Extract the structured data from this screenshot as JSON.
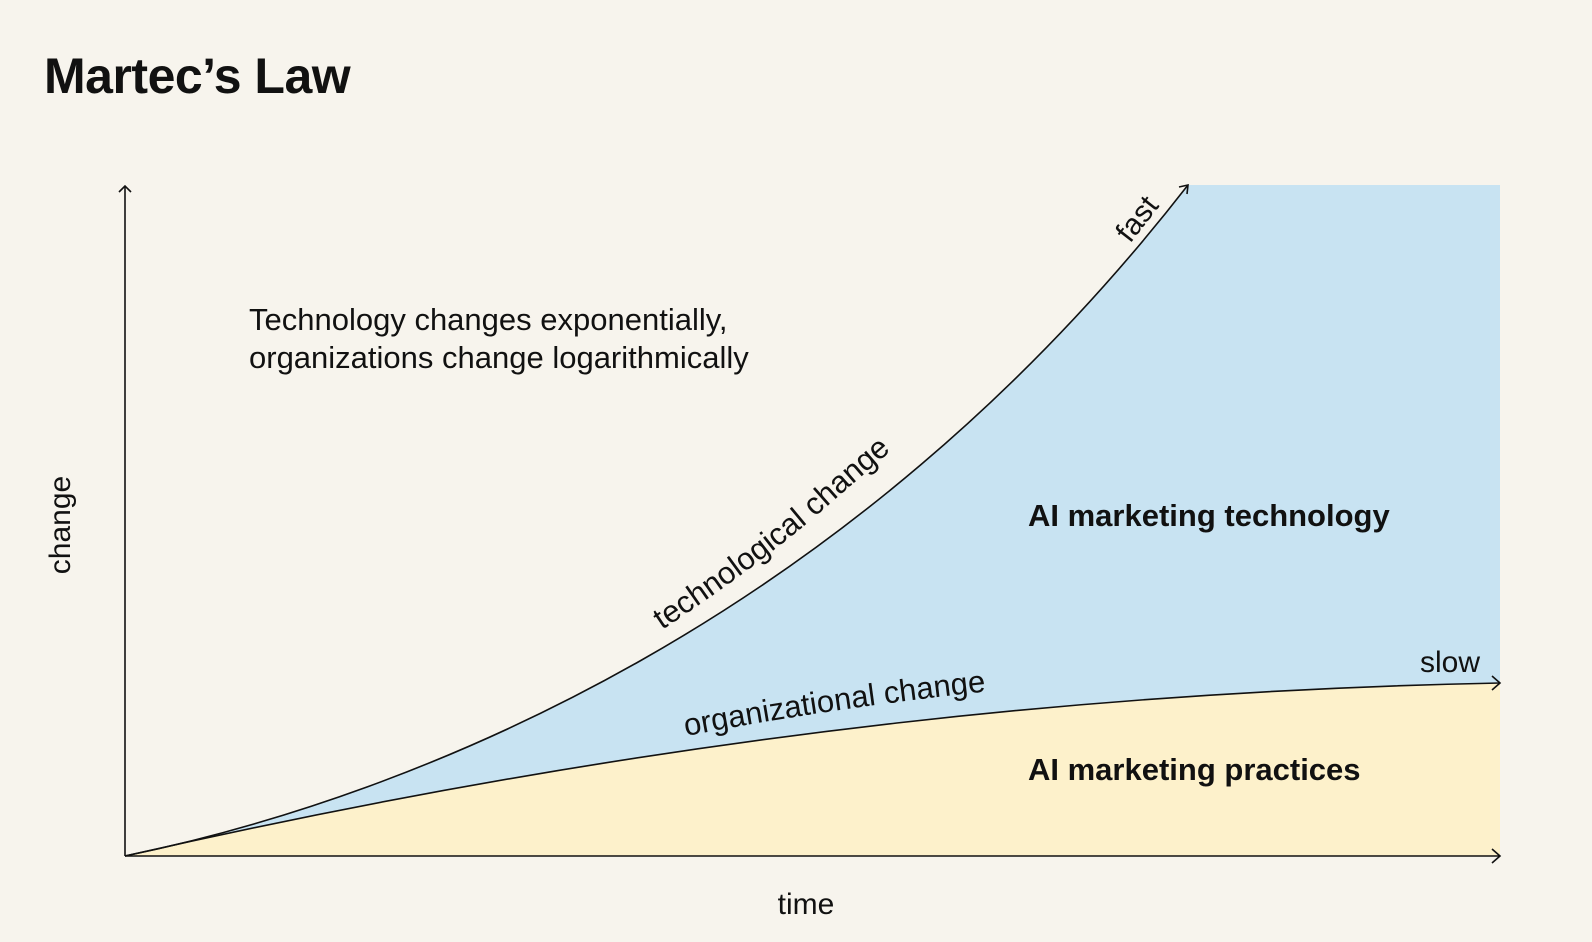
{
  "title": "Martec’s Law",
  "description_line1": "Technology changes exponentially,",
  "description_line2": "organizations change logarithmically",
  "axes": {
    "x_label": "time",
    "y_label": "change"
  },
  "curves": {
    "technology_label": "technological change",
    "technology_end_label": "fast",
    "organization_label": "organizational change",
    "organization_end_label": "slow"
  },
  "regions": {
    "technology_region_label": "AI marketing technology",
    "practices_region_label": "AI marketing practices"
  },
  "colors": {
    "background": "#f7f4ed",
    "technology_fill": "#c8e3f2",
    "practices_fill": "#fdf1cb",
    "line": "#111111"
  }
}
